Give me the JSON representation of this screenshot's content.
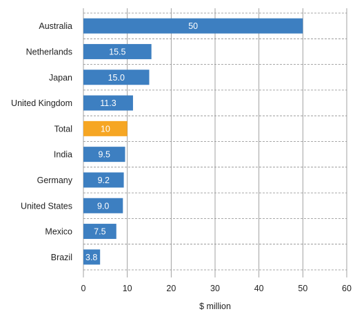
{
  "chart_data": {
    "type": "bar",
    "orientation": "horizontal",
    "categories": [
      "Australia",
      "Netherlands",
      "Japan",
      "United Kingdom",
      "Total",
      "India",
      "Germany",
      "United States",
      "Mexico",
      "Brazil"
    ],
    "values": [
      50,
      15.5,
      15.0,
      11.3,
      10,
      9.5,
      9.2,
      9.0,
      7.5,
      3.8
    ],
    "data_labels": [
      "50",
      "15.5",
      "15.0",
      "11.3",
      "10",
      "9.5",
      "9.2",
      "9.0",
      "7.5",
      "3.8"
    ],
    "highlight_category": "Total",
    "colors": {
      "bar": "#3d7fc1",
      "highlight": "#f6a623",
      "grid": "#8a8a8a"
    },
    "title": "",
    "xlabel": "$ million",
    "ylabel": "",
    "xlim": [
      0,
      60
    ],
    "xticks": [
      0,
      10,
      20,
      30,
      40,
      50,
      60
    ],
    "grid": "vertical solid, horizontal dashed"
  }
}
